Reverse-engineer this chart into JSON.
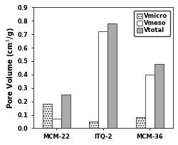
{
  "categories": [
    "MCM-22",
    "ITQ-2",
    "MCM-36"
  ],
  "series": {
    "Vmicro": [
      0.18,
      0.05,
      0.08
    ],
    "Vmeso": [
      0.07,
      0.72,
      0.4
    ],
    "Vtotal": [
      0.25,
      0.78,
      0.48
    ]
  },
  "colors": {
    "Vmicro": "#ffffff",
    "Vmeso": "#ffffff",
    "Vtotal": "#aaaaaa"
  },
  "hatch": {
    "Vmicro": ".....",
    "Vmeso": "",
    "Vtotal": ""
  },
  "ylabel": "Pore Volume (cm$^{3}$/g)",
  "ylim": [
    0,
    0.9
  ],
  "yticks": [
    0.0,
    0.1,
    0.2,
    0.3,
    0.4,
    0.5,
    0.6,
    0.7,
    0.8,
    0.9
  ],
  "legend_labels": [
    "Vmicro",
    "Vmeso",
    "Vtotal"
  ],
  "bar_width": 0.2,
  "background_color": "#ffffff",
  "axis_fontsize": 7,
  "tick_fontsize": 6,
  "legend_fontsize": 6
}
